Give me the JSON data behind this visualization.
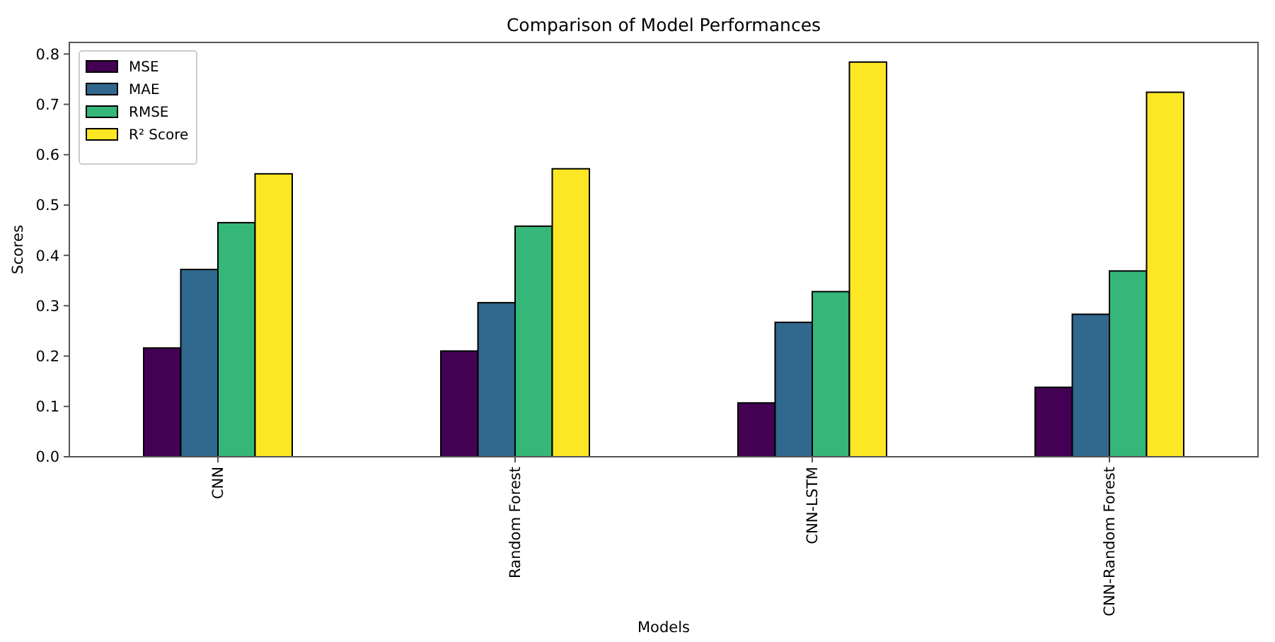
{
  "chart_data": {
    "type": "bar",
    "title": "Comparison of Model Performances",
    "xlabel": "Models",
    "ylabel": "Scores",
    "categories": [
      "CNN",
      "Random Forest",
      "CNN-LSTM",
      "CNN-Random Forest"
    ],
    "series": [
      {
        "name": "MSE",
        "color": "#440154",
        "values": [
          0.216,
          0.21,
          0.107,
          0.138
        ]
      },
      {
        "name": "MAE",
        "color": "#31688e",
        "values": [
          0.372,
          0.306,
          0.267,
          0.283
        ]
      },
      {
        "name": "RMSE",
        "color": "#35b779",
        "values": [
          0.465,
          0.458,
          0.328,
          0.369
        ]
      },
      {
        "name": "R² Score",
        "color": "#fde725",
        "values": [
          0.562,
          0.572,
          0.784,
          0.724
        ]
      }
    ],
    "ylim": [
      0,
      0.823
    ],
    "yticks": [
      {
        "value": 0,
        "label": "0.0"
      },
      0.1,
      0.2,
      0.3,
      0.4,
      0.5,
      0.6,
      0.7,
      0.8
    ],
    "grid": false,
    "legend": "top left"
  }
}
